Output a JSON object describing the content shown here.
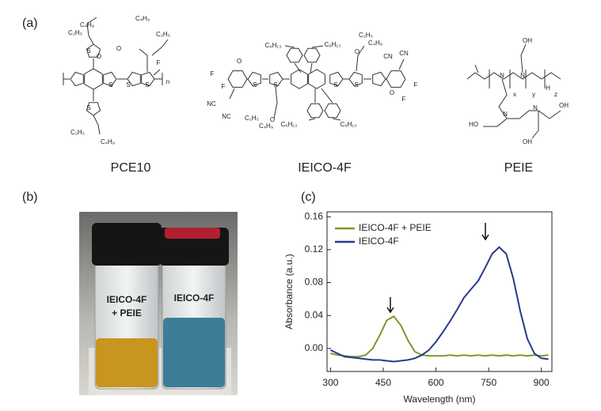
{
  "panel_a": {
    "label": "(a)",
    "molecules": [
      {
        "name": "PCE10",
        "labels": [
          "C₄H₉",
          "C₂H₅",
          "O",
          "O",
          "C₄H₉",
          "C₂H₅",
          "F",
          "S",
          "S",
          "S",
          "S",
          "S",
          "n",
          "C₂H₅",
          "C₄H₉"
        ]
      },
      {
        "name": "IEICO-4F",
        "labels": [
          "C₆H₁₃",
          "C₆H₁₃",
          "O",
          "C₂H₅",
          "C₄H₉",
          "F",
          "F",
          "O",
          "NC",
          "NC",
          "CN",
          "CN",
          "O",
          "C₂H₅",
          "C₄H₉",
          "C₆H₁₃",
          "C₆H₁₃",
          "O",
          "F",
          "F",
          "S",
          "S",
          "S",
          "S"
        ]
      },
      {
        "name": "PEIE",
        "labels": [
          "OH",
          "N",
          "N",
          "H",
          "x",
          "y",
          "z",
          "N",
          "N",
          "HO",
          "OH",
          "OH"
        ]
      }
    ]
  },
  "panel_b": {
    "label": "(b)",
    "vial_labels": [
      "IEICO-4F",
      "+ PEIE",
      "IEICO-4F"
    ]
  },
  "panel_c": {
    "label": "(c)"
  },
  "chart_data": {
    "type": "line",
    "xlabel": "Wavelength (nm)",
    "ylabel": "Absorbance (a.u.)",
    "x": [
      300,
      320,
      340,
      360,
      380,
      400,
      420,
      440,
      460,
      480,
      500,
      520,
      540,
      560,
      580,
      600,
      620,
      640,
      660,
      680,
      700,
      720,
      740,
      760,
      780,
      800,
      820,
      840,
      860,
      880,
      900,
      920
    ],
    "series": [
      {
        "name": "IEICO-4F + PEIE",
        "color": "#7a9a2a",
        "values": [
          -0.006,
          -0.008,
          -0.009,
          -0.01,
          -0.01,
          -0.008,
          0.0,
          0.016,
          0.034,
          0.039,
          0.028,
          0.01,
          -0.004,
          -0.008,
          -0.009,
          -0.009,
          -0.009,
          -0.008,
          -0.009,
          -0.008,
          -0.009,
          -0.008,
          -0.009,
          -0.008,
          -0.009,
          -0.008,
          -0.009,
          -0.008,
          -0.009,
          -0.008,
          -0.009,
          -0.008
        ]
      },
      {
        "name": "IEICO-4F",
        "color": "#283a8e",
        "values": [
          -0.002,
          -0.006,
          -0.01,
          -0.011,
          -0.012,
          -0.013,
          -0.014,
          -0.014,
          -0.015,
          -0.016,
          -0.015,
          -0.014,
          -0.012,
          -0.008,
          -0.002,
          0.008,
          0.02,
          0.033,
          0.047,
          0.062,
          0.072,
          0.082,
          0.098,
          0.115,
          0.123,
          0.115,
          0.085,
          0.045,
          0.012,
          -0.006,
          -0.012,
          -0.013
        ]
      }
    ],
    "xlim": [
      290,
      930
    ],
    "ylim": [
      -0.028,
      0.166
    ],
    "xticks": [
      300,
      450,
      600,
      750,
      900
    ],
    "yticks": [
      {
        "value": 0,
        "label": "0.00"
      },
      0.04,
      0.08,
      0.12,
      0.16
    ],
    "legend": "upper left"
  }
}
